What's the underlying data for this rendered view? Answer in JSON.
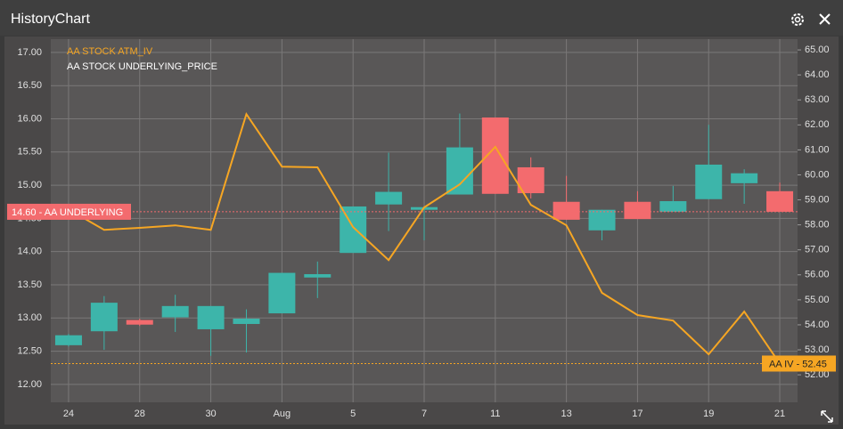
{
  "window": {
    "title": "HistoryChart"
  },
  "chart_data": {
    "type": "candlestick",
    "categories": [
      "24",
      null,
      "28",
      null,
      "30",
      null,
      "Aug",
      null,
      "5",
      null,
      "7",
      null,
      "11",
      null,
      "13",
      null,
      "17",
      null,
      "19",
      null,
      "21"
    ],
    "ylim": [
      11.73,
      17.2
    ],
    "yticks": [
      {
        "value": 12,
        "label": "12.00"
      },
      {
        "value": 12.5,
        "label": "12.50"
      },
      {
        "value": 13,
        "label": "13.00"
      },
      {
        "value": 13.5,
        "label": "13.50"
      },
      {
        "value": 14,
        "label": "14.00"
      },
      {
        "value": 14.5,
        "label": "14.50"
      },
      {
        "value": 15,
        "label": "15.00"
      },
      {
        "value": 15.5,
        "label": "15.50"
      },
      {
        "value": 16,
        "label": "16.00"
      },
      {
        "value": 16.5,
        "label": "16.50"
      },
      {
        "value": 17,
        "label": "17.00"
      }
    ],
    "y2lim": [
      50.9,
      65.43
    ],
    "y2ticks": [
      {
        "value": 52,
        "label": "52.00"
      },
      {
        "value": 53,
        "label": "53.00"
      },
      {
        "value": 54,
        "label": "54.00"
      },
      {
        "value": 55,
        "label": "55.00"
      },
      {
        "value": 56,
        "label": "56.00"
      },
      {
        "value": 57,
        "label": "57.00"
      },
      {
        "value": 58,
        "label": "58.00"
      },
      {
        "value": 59,
        "label": "59.00"
      },
      {
        "value": 60,
        "label": "60.00"
      },
      {
        "value": 61,
        "label": "61.00"
      },
      {
        "value": 62,
        "label": "62.00"
      },
      {
        "value": 63,
        "label": "63.00"
      },
      {
        "value": 64,
        "label": "64.00"
      },
      {
        "value": 65,
        "label": "65.00"
      }
    ],
    "grid": true,
    "legend": "top-left",
    "series": [
      {
        "name": "AA STOCK ATM_IV",
        "type": "line",
        "axis": "y2",
        "color": "#f6a623",
        "values": [
          58.62,
          57.8,
          57.88,
          57.98,
          57.8,
          62.43,
          60.33,
          60.3,
          57.91,
          56.59,
          58.7,
          59.62,
          61.12,
          58.8,
          57.98,
          55.28,
          54.39,
          54.17,
          52.82,
          54.53,
          52.45
        ]
      },
      {
        "name": "AA STOCK UNDERLYING_PRICE",
        "type": "candlestick",
        "color": "#ffffff",
        "up_color": "#3db5aa",
        "down_color": "#f36b6e",
        "open": [
          12.59,
          12.8,
          12.97,
          13.01,
          12.83,
          12.91,
          13.07,
          13.61,
          13.98,
          14.71,
          14.63,
          14.86,
          16.02,
          15.27,
          14.75,
          14.32,
          14.75,
          14.6,
          14.79,
          15.03,
          14.91
        ],
        "high": [
          12.76,
          13.33,
          12.99,
          13.35,
          13.18,
          13.13,
          13.68,
          13.85,
          14.68,
          15.49,
          14.67,
          16.08,
          16.02,
          15.42,
          15.14,
          14.63,
          14.91,
          14.99,
          15.91,
          15.24,
          15.04
        ],
        "low": [
          12.57,
          12.52,
          12.88,
          12.79,
          12.43,
          12.48,
          13.07,
          13.3,
          13.98,
          14.31,
          14.17,
          14.86,
          14.87,
          14.8,
          14.48,
          14.17,
          14.49,
          14.6,
          14.79,
          14.72,
          14.6
        ],
        "close": [
          12.74,
          13.23,
          12.9,
          13.18,
          13.18,
          12.99,
          13.68,
          13.66,
          14.68,
          14.9,
          14.67,
          15.57,
          14.87,
          14.88,
          14.48,
          14.63,
          14.49,
          14.76,
          15.31,
          15.18,
          14.6
        ]
      }
    ],
    "price_label": {
      "value": 14.6,
      "label": "14.60 - AA UNDERLYING",
      "color": "#f36b6e"
    },
    "iv_label": {
      "value": 52.45,
      "label": "AA IV - 52.45",
      "color": "#f6a623"
    }
  }
}
